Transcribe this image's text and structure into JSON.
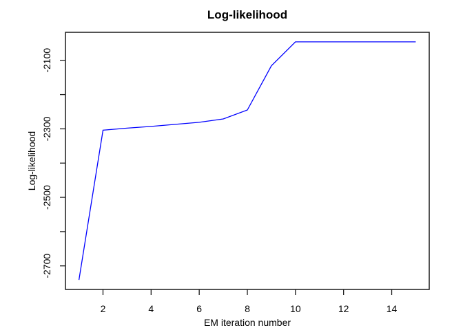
{
  "figure": {
    "background": "#ffffff",
    "text_color": "#000000",
    "axis_color": "#1a1a1a"
  },
  "chart_data": {
    "type": "line",
    "title": "Log-likelihood",
    "xlabel": "EM iteration number",
    "ylabel": "Log-likelihood",
    "x": [
      1,
      2,
      3,
      4,
      5,
      6,
      7,
      8,
      9,
      10,
      11,
      12,
      13,
      14,
      15
    ],
    "y": [
      -2741,
      -2304,
      -2298,
      -2293,
      -2287,
      -2281,
      -2271,
      -2245,
      -2116,
      -2046,
      -2046,
      -2046,
      -2046,
      -2046,
      -2046
    ],
    "line_color": "#0000ff",
    "xlim": [
      1,
      15
    ],
    "ylim": [
      -2741,
      -2046
    ],
    "x_ticks": [
      {
        "value": 2,
        "label": "2"
      },
      {
        "value": 4,
        "label": "4"
      },
      {
        "value": 6,
        "label": "6"
      },
      {
        "value": 8,
        "label": "8"
      },
      {
        "value": 10,
        "label": "10"
      },
      {
        "value": 12,
        "label": "12"
      },
      {
        "value": 14,
        "label": "14"
      }
    ],
    "y_ticks": [
      {
        "value": -2700,
        "label": "-2700"
      },
      {
        "value": -2600,
        "label": ""
      },
      {
        "value": -2500,
        "label": "-2500"
      },
      {
        "value": -2400,
        "label": ""
      },
      {
        "value": -2300,
        "label": "-2300"
      },
      {
        "value": -2200,
        "label": ""
      },
      {
        "value": -2100,
        "label": "-2100"
      }
    ],
    "grid": false,
    "legend_position": "none"
  }
}
